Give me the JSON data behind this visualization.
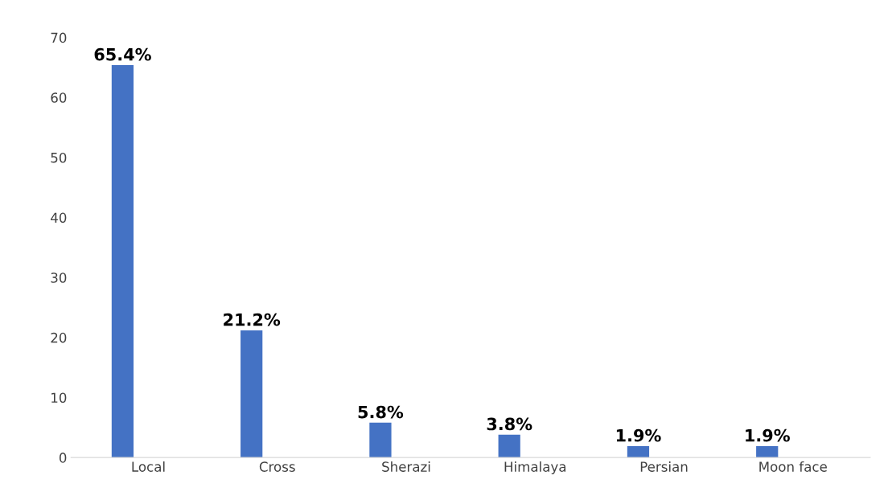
{
  "chart_data": {
    "type": "bar",
    "categories": [
      "Local",
      "Cross",
      "Sherazi",
      "Himalaya",
      "Persian",
      "Moon face"
    ],
    "values": [
      65.4,
      21.2,
      5.8,
      3.8,
      1.9,
      1.9
    ],
    "value_labels": [
      "65.4%",
      "21.2%",
      "5.8%",
      "3.8%",
      "1.9%",
      "1.9%"
    ],
    "color": "#4472c4",
    "ylim": [
      0,
      70
    ],
    "yticks": [
      0,
      10,
      20,
      30,
      40,
      50,
      60,
      70
    ],
    "grid": false,
    "legend": false
  }
}
